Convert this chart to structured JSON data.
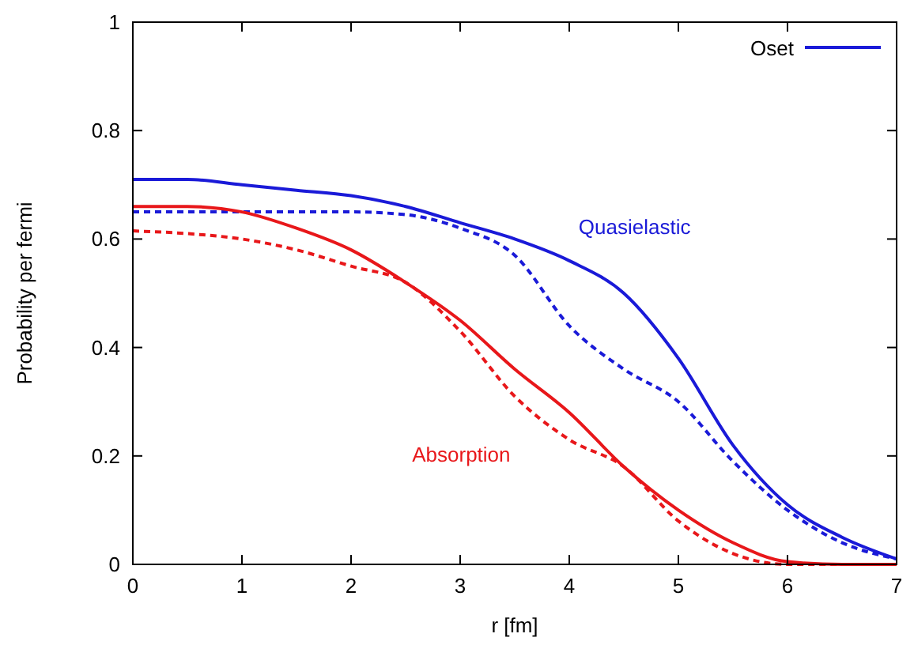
{
  "chart_data": {
    "type": "line",
    "xlabel": "r [fm]",
    "ylabel": "Probability per fermi",
    "x": [
      0,
      0.5,
      1,
      1.5,
      2,
      2.5,
      3,
      3.5,
      4,
      4.5,
      5,
      5.5,
      6,
      6.5,
      7
    ],
    "xlim": [
      0,
      7
    ],
    "ylim": [
      0,
      1
    ],
    "xticks": [
      0,
      1,
      2,
      3,
      4,
      5,
      6,
      7
    ],
    "yticks": [
      0,
      0.2,
      0.4,
      0.6,
      0.8,
      1
    ],
    "legend": "top right",
    "grid": false,
    "series": [
      {
        "name": "Oset",
        "color": "#1a1ad8",
        "line_style": "solid",
        "values": [
          0.71,
          0.71,
          0.7,
          0.69,
          0.68,
          0.66,
          0.63,
          0.6,
          0.56,
          0.5,
          0.38,
          0.22,
          0.11,
          0.05,
          0.01
        ]
      },
      {
        "color": "#1a1ad8",
        "line_style": "dashed",
        "values": [
          0.65,
          0.65,
          0.65,
          0.65,
          0.65,
          0.645,
          0.62,
          0.57,
          0.44,
          0.36,
          0.3,
          0.19,
          0.1,
          0.04,
          0.01
        ]
      },
      {
        "color": "#e8171a",
        "line_style": "solid",
        "values": [
          0.66,
          0.66,
          0.65,
          0.62,
          0.58,
          0.52,
          0.45,
          0.36,
          0.28,
          0.18,
          0.1,
          0.04,
          0.005,
          0,
          0
        ]
      },
      {
        "color": "#e8171a",
        "line_style": "dashed",
        "values": [
          0.615,
          0.61,
          0.6,
          0.58,
          0.55,
          0.52,
          0.43,
          0.31,
          0.23,
          0.18,
          0.08,
          0.02,
          0,
          0,
          0
        ]
      }
    ],
    "annotations": [
      "Quasielastic",
      "Absorption"
    ]
  }
}
